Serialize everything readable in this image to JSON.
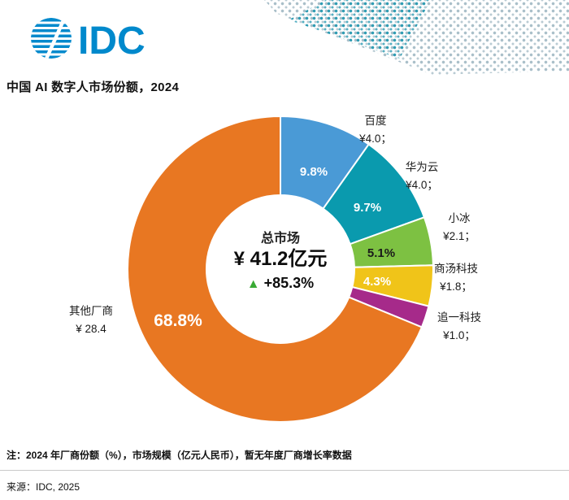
{
  "header": {
    "logo_text": "IDC",
    "logo_color": "#0089CC",
    "title": "中国 AI 数字人市场份额，2024"
  },
  "chart_data": {
    "type": "pie",
    "donut": true,
    "title": "中国 AI 数字人市场份额，2024",
    "legend_position": "none",
    "center_label": {
      "line1": "总市场",
      "line2": "¥ 41.2亿元",
      "growth": "+85.3%",
      "growth_triangle_color": "#3AAA35"
    },
    "segments": [
      {
        "name": "百度",
        "value": 4.0,
        "value_label": "¥4.0；",
        "percent": 9.8,
        "show_percent": true,
        "color": "#4A9AD6",
        "percent_text_color": "#ffffff"
      },
      {
        "name": "华为云",
        "value": 4.0,
        "value_label": "¥4.0；",
        "percent": 9.7,
        "show_percent": true,
        "color": "#0A9AAE",
        "percent_text_color": "#ffffff"
      },
      {
        "name": "小冰",
        "value": 2.1,
        "value_label": "¥2.1；",
        "percent": 5.1,
        "show_percent": true,
        "color": "#7DC142",
        "percent_text_color": "#1a1a1a"
      },
      {
        "name": "商汤科技",
        "value": 1.8,
        "value_label": "¥1.8；",
        "percent": 4.3,
        "show_percent": true,
        "color": "#F0C419",
        "percent_text_color": "#ffffff"
      },
      {
        "name": "追一科技",
        "value": 1.0,
        "value_label": "¥1.0；",
        "percent": 2.3,
        "show_percent": false,
        "color": "#A62A8A",
        "percent_text_color": "#ffffff"
      },
      {
        "name": "其他厂商",
        "value": 28.4,
        "value_label": "¥ 28.4",
        "percent": 68.8,
        "show_percent": true,
        "color": "#E87722",
        "percent_text_color": "#ffffff"
      }
    ]
  },
  "footer": {
    "note": "注：2024 年厂商份额（%），市场规模（亿元人民币），暂无年度厂商增长率数据",
    "source": "来源：IDC, 2025"
  }
}
